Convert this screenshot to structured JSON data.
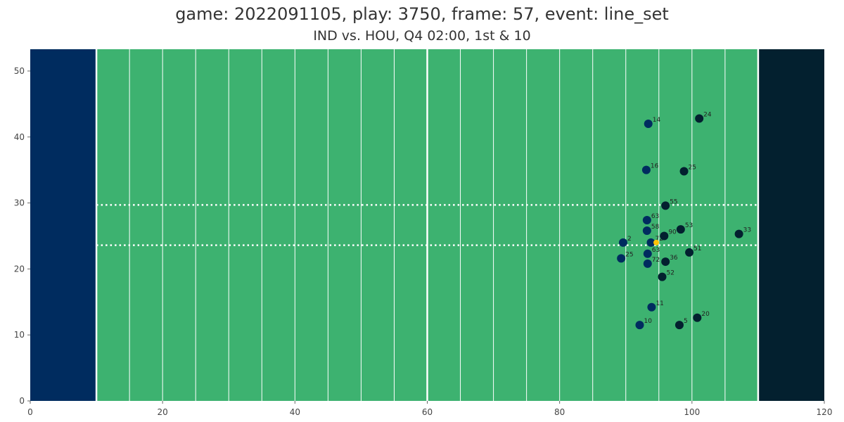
{
  "title": "game: 2022091105, play: 3750, frame: 57, event: line_set",
  "subtitle": "IND vs. HOU, Q4 02:00, 1st & 10",
  "colors": {
    "field": "#3db270",
    "left_endzone": "#002c5f",
    "right_endzone": "#03202f",
    "yard_lines": "#ffffff",
    "team_ind": "#002c5f",
    "team_hou": "#03202f",
    "football": "#ffc107"
  },
  "chart_data": {
    "type": "scatter",
    "title": "game: 2022091105, play: 3750, frame: 57, event: line_set",
    "subtitle": "IND vs. HOU, Q4 02:00, 1st & 10",
    "xlim": [
      0,
      120
    ],
    "ylim": [
      0,
      53.3
    ],
    "x_ticks": [
      0,
      20,
      40,
      60,
      80,
      100,
      120
    ],
    "y_ticks": [
      0,
      10,
      20,
      30,
      40,
      50
    ],
    "line_of_scrimmage": 60,
    "hash_marks": [
      23.6,
      29.7
    ],
    "series": [
      {
        "team": "IND",
        "color": "#002c5f",
        "points": [
          {
            "x": 93.4,
            "y": 42.0,
            "label": "14"
          },
          {
            "x": 93.1,
            "y": 35.0,
            "label": "16"
          },
          {
            "x": 93.2,
            "y": 27.4,
            "label": "63"
          },
          {
            "x": 93.2,
            "y": 25.8,
            "label": "58"
          },
          {
            "x": 93.8,
            "y": 24.0,
            "label": "72"
          },
          {
            "x": 89.6,
            "y": 24.0,
            "label": "2"
          },
          {
            "x": 93.3,
            "y": 22.3,
            "label": "63"
          },
          {
            "x": 89.3,
            "y": 21.6,
            "label": "25"
          },
          {
            "x": 93.3,
            "y": 20.8,
            "label": "72"
          },
          {
            "x": 93.9,
            "y": 14.2,
            "label": "11"
          },
          {
            "x": 92.1,
            "y": 11.5,
            "label": "10"
          }
        ]
      },
      {
        "team": "HOU",
        "color": "#03202f",
        "points": [
          {
            "x": 101.1,
            "y": 42.8,
            "label": "24"
          },
          {
            "x": 98.8,
            "y": 34.8,
            "label": "25"
          },
          {
            "x": 96.0,
            "y": 29.6,
            "label": "55"
          },
          {
            "x": 98.3,
            "y": 26.0,
            "label": "53"
          },
          {
            "x": 95.8,
            "y": 25.0,
            "label": "90"
          },
          {
            "x": 107.1,
            "y": 25.3,
            "label": "33"
          },
          {
            "x": 99.6,
            "y": 22.5,
            "label": "51"
          },
          {
            "x": 96.0,
            "y": 21.1,
            "label": "36"
          },
          {
            "x": 95.5,
            "y": 18.8,
            "label": "52"
          },
          {
            "x": 100.8,
            "y": 12.6,
            "label": "20"
          },
          {
            "x": 98.1,
            "y": 11.5,
            "label": "5"
          }
        ]
      },
      {
        "team": "football",
        "color": "#ffc107",
        "points": [
          {
            "x": 94.6,
            "y": 24.0,
            "label": ""
          }
        ]
      }
    ]
  }
}
